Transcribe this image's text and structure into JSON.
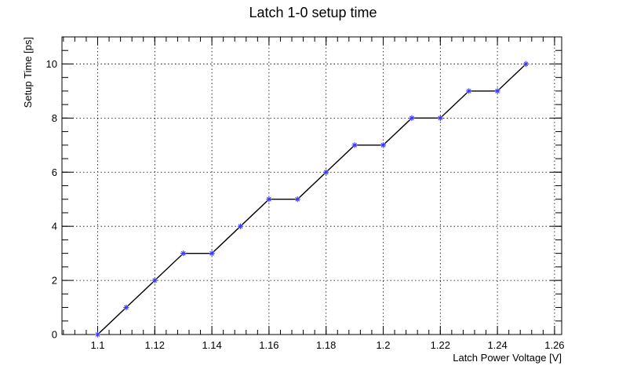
{
  "chart_data": {
    "type": "line",
    "title": "Latch 1-0 setup time",
    "xlabel": "Latch Power Voltage [V]",
    "ylabel": "Setup Time [ps]",
    "xlim": [
      1.0875,
      1.2625
    ],
    "ylim": [
      0,
      11
    ],
    "x_ticks": [
      1.1,
      1.12,
      1.14,
      1.16,
      1.18,
      1.2,
      1.22,
      1.24,
      1.26
    ],
    "x_tick_labels": [
      "1.1",
      "1.12",
      "1.14",
      "1.16",
      "1.18",
      "1.2",
      "1.22",
      "1.24",
      "1.26"
    ],
    "y_ticks": [
      0,
      2,
      4,
      6,
      8,
      10
    ],
    "y_tick_labels": [
      "0",
      "2",
      "4",
      "6",
      "8",
      "10"
    ],
    "grid": true,
    "marker": "asterisk",
    "colors": {
      "line": "#000000",
      "marker": "#3b3bff"
    },
    "series": [
      {
        "x": [
          1.1,
          1.11,
          1.12,
          1.13,
          1.14,
          1.15,
          1.16,
          1.17,
          1.18,
          1.19,
          1.2,
          1.21,
          1.22,
          1.23,
          1.24,
          1.25
        ],
        "y": [
          0,
          1,
          2,
          3,
          3,
          4,
          5,
          5,
          6,
          7,
          7,
          8,
          8,
          9,
          9,
          10
        ]
      }
    ]
  }
}
